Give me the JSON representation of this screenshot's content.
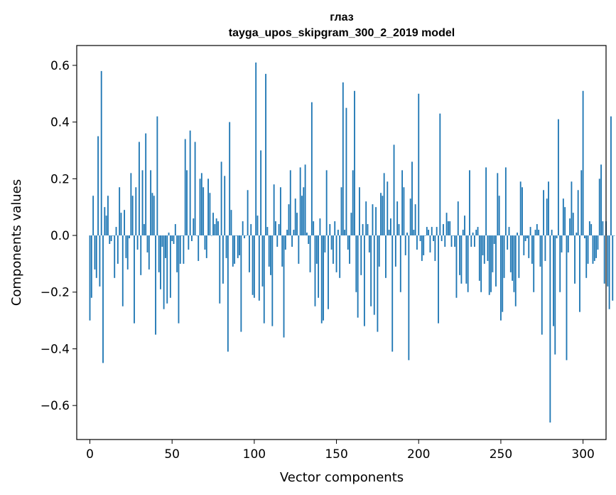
{
  "chart_data": {
    "type": "bar",
    "title": "глаз",
    "subtitle": "tayga_upos_skipgram_300_2_2019 model",
    "xlabel": "Vector components",
    "ylabel": "Components values",
    "xlim": [
      -8,
      314
    ],
    "ylim": [
      -0.72,
      0.67
    ],
    "xticks": [
      0,
      50,
      100,
      150,
      200,
      250,
      300
    ],
    "xtick_labels": [
      "0",
      "50",
      "100",
      "150",
      "200",
      "250",
      "300"
    ],
    "yticks": [
      0.6,
      0.4,
      0.2,
      0.0,
      -0.2,
      -0.4,
      -0.6
    ],
    "ytick_labels": [
      "0.6",
      "0.4",
      "0.2",
      "0.0",
      "−0.2",
      "−0.4",
      "−0.6"
    ],
    "bar_color": "#1f77b4",
    "grid": false,
    "legend": "none",
    "values": [
      -0.3,
      -0.22,
      0.14,
      -0.12,
      -0.15,
      0.35,
      -0.18,
      0.58,
      -0.45,
      0.1,
      0.07,
      0.14,
      -0.03,
      -0.02,
      0.0,
      -0.15,
      0.03,
      -0.1,
      0.17,
      0.08,
      -0.25,
      0.09,
      -0.08,
      -0.12,
      -0.01,
      0.22,
      0.14,
      -0.31,
      0.17,
      -0.05,
      0.33,
      -0.14,
      0.23,
      0.04,
      0.36,
      -0.06,
      -0.12,
      0.23,
      0.15,
      0.14,
      -0.35,
      0.42,
      -0.13,
      -0.19,
      -0.04,
      -0.26,
      -0.08,
      -0.24,
      0.01,
      -0.22,
      -0.02,
      -0.03,
      0.04,
      -0.13,
      -0.31,
      -0.1,
      0.0,
      -0.1,
      0.34,
      0.23,
      -0.05,
      0.37,
      -0.02,
      0.06,
      0.33,
      0.0,
      -0.09,
      0.2,
      0.22,
      0.17,
      -0.05,
      -0.08,
      0.2,
      0.15,
      0.0,
      0.08,
      0.04,
      0.06,
      0.05,
      -0.24,
      0.26,
      -0.17,
      0.21,
      -0.08,
      -0.41,
      0.4,
      0.09,
      -0.11,
      -0.1,
      0.0,
      -0.08,
      -0.07,
      -0.34,
      0.05,
      -0.01,
      0.0,
      0.16,
      -0.13,
      0.04,
      -0.21,
      -0.22,
      0.61,
      0.07,
      -0.23,
      0.3,
      -0.18,
      -0.31,
      0.57,
      0.03,
      -0.11,
      -0.14,
      -0.32,
      0.18,
      0.05,
      -0.04,
      0.04,
      0.17,
      -0.11,
      -0.36,
      -0.05,
      0.02,
      0.11,
      0.23,
      -0.04,
      0.02,
      0.13,
      0.08,
      -0.1,
      0.24,
      0.14,
      0.17,
      0.25,
      0.01,
      -0.03,
      -0.13,
      0.47,
      0.05,
      -0.25,
      -0.1,
      -0.22,
      0.06,
      -0.31,
      -0.3,
      -0.06,
      0.23,
      -0.26,
      0.04,
      -0.05,
      -0.1,
      0.05,
      -0.13,
      0.02,
      -0.15,
      0.17,
      0.54,
      0.02,
      0.45,
      -0.05,
      -0.1,
      0.08,
      0.23,
      0.51,
      -0.2,
      -0.29,
      0.17,
      -0.14,
      0.04,
      -0.32,
      0.12,
      0.04,
      -0.06,
      -0.25,
      0.11,
      -0.28,
      0.1,
      -0.34,
      -0.11,
      0.15,
      0.14,
      0.22,
      -0.15,
      0.19,
      0.02,
      0.06,
      -0.41,
      0.32,
      -0.11,
      0.12,
      0.04,
      -0.2,
      0.23,
      0.17,
      -0.07,
      0.01,
      -0.44,
      0.13,
      0.26,
      0.02,
      0.11,
      -0.05,
      0.5,
      -0.02,
      -0.09,
      -0.07,
      0.0,
      0.03,
      0.02,
      -0.06,
      0.03,
      -0.02,
      -0.09,
      0.03,
      -0.31,
      0.43,
      -0.02,
      0.04,
      -0.04,
      0.08,
      0.05,
      0.05,
      -0.04,
      0.0,
      -0.04,
      -0.22,
      0.12,
      -0.14,
      -0.17,
      0.02,
      0.07,
      -0.17,
      -0.2,
      0.23,
      -0.04,
      0.01,
      -0.04,
      0.02,
      0.03,
      -0.16,
      -0.2,
      -0.07,
      -0.1,
      0.24,
      -0.09,
      -0.21,
      -0.2,
      -0.13,
      -0.03,
      -0.18,
      0.22,
      0.14,
      -0.3,
      -0.27,
      -0.15,
      0.24,
      -0.05,
      0.03,
      -0.13,
      -0.16,
      -0.2,
      -0.25,
      0.01,
      -0.15,
      0.19,
      0.17,
      -0.07,
      -0.02,
      -0.01,
      -0.08,
      0.03,
      -0.1,
      -0.2,
      0.02,
      0.04,
      0.02,
      -0.11,
      -0.35,
      0.16,
      -0.09,
      0.13,
      0.19,
      -0.66,
      0.02,
      -0.32,
      -0.42,
      -0.01,
      0.41,
      -0.2,
      -0.06,
      0.13,
      0.1,
      -0.44,
      -0.06,
      0.06,
      0.19,
      0.08,
      -0.17,
      0.01,
      0.16,
      -0.27,
      0.23,
      0.51,
      -0.01,
      -0.15,
      -0.1,
      0.05,
      0.04,
      -0.1,
      -0.09,
      -0.08,
      -0.05,
      0.2,
      0.25,
      0.05,
      -0.17,
      0.05,
      -0.18,
      -0.26,
      0.42,
      -0.23,
      0.0
    ]
  }
}
